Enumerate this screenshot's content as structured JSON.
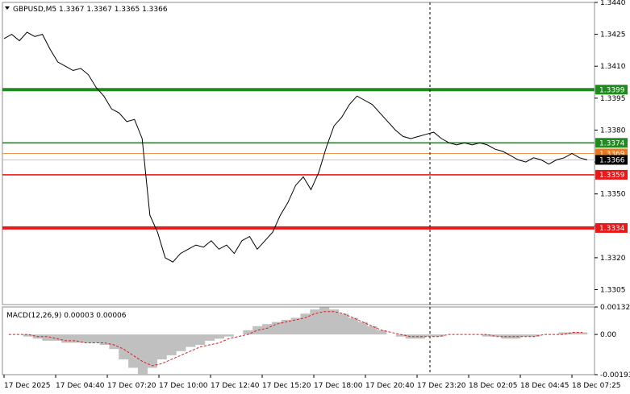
{
  "chart_data": [
    {
      "type": "line",
      "title": "GBPUSD,M5  1.3367 1.3367 1.3365 1.3366",
      "ylim": [
        1.3298,
        1.344
      ],
      "y_ticks": [
        "1.3440",
        "1.3425",
        "1.3410",
        "1.3395",
        "1.3380",
        "1.3365",
        "1.3350",
        "1.3335",
        "1.3320",
        "1.3305"
      ],
      "x_ticks": [
        "17 Dec 2025",
        "17 Dec 04:40",
        "17 Dec 07:20",
        "17 Dec 10:00",
        "17 Dec 12:40",
        "17 Dec 15:20",
        "17 Dec 18:00",
        "17 Dec 20:40",
        "17 Dec 23:20",
        "18 Dec 02:05",
        "18 Dec 04:45",
        "18 Dec 07:25"
      ],
      "price": [
        1.3423,
        1.3425,
        1.3422,
        1.3426,
        1.3424,
        1.3425,
        1.3418,
        1.3412,
        1.341,
        1.3408,
        1.3409,
        1.3406,
        1.34,
        1.3396,
        1.339,
        1.3388,
        1.3384,
        1.3385,
        1.3376,
        1.334,
        1.3332,
        1.332,
        1.3318,
        1.3322,
        1.3324,
        1.3326,
        1.3325,
        1.3328,
        1.3324,
        1.3326,
        1.3322,
        1.3328,
        1.333,
        1.3324,
        1.3328,
        1.3332,
        1.334,
        1.3346,
        1.3354,
        1.3358,
        1.3352,
        1.336,
        1.3372,
        1.3382,
        1.3386,
        1.3392,
        1.3396,
        1.3394,
        1.3392,
        1.3388,
        1.3384,
        1.338,
        1.3377,
        1.3376,
        1.3377,
        1.3378,
        1.3379,
        1.3376,
        1.3374,
        1.3373,
        1.3374,
        1.3373,
        1.3374,
        1.3373,
        1.3371,
        1.337,
        1.3368,
        1.3366,
        1.3365,
        1.3367,
        1.3366,
        1.3364,
        1.3366,
        1.3367,
        1.3369,
        1.3367,
        1.3366
      ],
      "current_price": "1.3366",
      "bid_line": "1.3369",
      "levels": [
        {
          "value": 1.3399,
          "label": "1.3399",
          "color": "#1f8a1f",
          "style": "thick"
        },
        {
          "value": 1.3374,
          "label": "1.3374",
          "color": "#1f8a1f",
          "style": "normal"
        },
        {
          "value": 1.3359,
          "label": "1.3359",
          "color": "#e8191b",
          "style": "normal"
        },
        {
          "value": 1.3334,
          "label": "1.3334",
          "color": "#e8191b",
          "style": "thick"
        }
      ],
      "vline_x_label": "17 Dec 23:20"
    },
    {
      "type": "bar",
      "title": "MACD(12,26,9) 0.00003 0.00006",
      "ylim": [
        -0.00193,
        0.00132
      ],
      "y_ticks": [
        "0.00132",
        "0.00",
        "-0.00193"
      ],
      "histogram": [
        0.0,
        0.0,
        -0.0001,
        -0.0002,
        -0.0003,
        -0.0003,
        -0.0004,
        -0.0004,
        -0.0004,
        -0.0004,
        -0.0005,
        -0.0007,
        -0.0012,
        -0.0016,
        -0.0019,
        -0.0016,
        -0.0012,
        -0.001,
        -0.0008,
        -0.0006,
        -0.0005,
        -0.0003,
        -0.0002,
        -0.0001,
        0.0,
        0.0002,
        0.0004,
        0.0005,
        0.0006,
        0.0007,
        0.0008,
        0.001,
        0.0012,
        0.0013,
        0.0012,
        0.001,
        0.0008,
        0.0006,
        0.0004,
        0.0002,
        0.0,
        -0.0001,
        -0.0002,
        -0.0002,
        -0.0001,
        -0.0001,
        0.0,
        0.0,
        0.0,
        0.0,
        -0.0001,
        -0.0001,
        -0.0002,
        -0.0002,
        -0.0001,
        -0.0001,
        0.0,
        0.0,
        0.0001,
        0.0001,
        0.0001
      ],
      "signal": [
        0.0,
        0.0,
        0.0,
        -0.0001,
        -0.0001,
        -0.0002,
        -0.0003,
        -0.0003,
        -0.0004,
        -0.0004,
        -0.0004,
        -0.0005,
        -0.0007,
        -0.001,
        -0.0013,
        -0.0015,
        -0.0014,
        -0.0012,
        -0.001,
        -0.0008,
        -0.0006,
        -0.0005,
        -0.0004,
        -0.0002,
        -0.0001,
        0.0,
        0.0002,
        0.0003,
        0.0005,
        0.0006,
        0.0007,
        0.0008,
        0.001,
        0.0011,
        0.0011,
        0.001,
        0.0008,
        0.0006,
        0.0004,
        0.0002,
        0.0001,
        0.0,
        -0.0001,
        -0.0001,
        -0.0001,
        -0.0001,
        0.0,
        0.0,
        0.0,
        0.0,
        0.0,
        -0.0001,
        -0.0001,
        -0.0001,
        -0.0001,
        -0.0001,
        0.0,
        0.0,
        0.0,
        0.0001,
        0.0001
      ]
    }
  ],
  "colors": {
    "price_line": "#000000",
    "hist_fill": "#c0c0c0",
    "signal_line": "#e8191b",
    "grid": "#cfcfcf",
    "bid_line": "#e8761b"
  }
}
